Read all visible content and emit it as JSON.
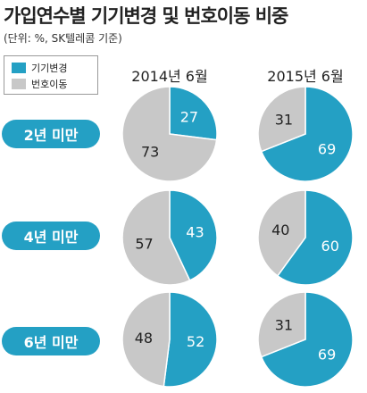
{
  "title": "가입연수별 기기변경 및 번호이동 비중",
  "subtitle": "(단위: %, SK텔레콤 기준)",
  "colors": {
    "device_change": "#24a0c4",
    "number_port": "#c8c8c8",
    "label_bg": "#24a0c4"
  },
  "chart_data": {
    "type": "pie",
    "title": "가입연수별 기기변경 및 번호이동 비중",
    "unit": "%",
    "legend": [
      "기기변경",
      "번호이동"
    ],
    "columns": [
      "2014년 6월",
      "2015년 6월"
    ],
    "rows": [
      "2년 미만",
      "4년 미만",
      "6년 미만"
    ],
    "pies": [
      {
        "row": "2년 미만",
        "column": "2014년 6월",
        "values": [
          27,
          73
        ]
      },
      {
        "row": "2년 미만",
        "column": "2015년 6월",
        "values": [
          69,
          31
        ]
      },
      {
        "row": "4년 미만",
        "column": "2014년 6월",
        "values": [
          43,
          57
        ]
      },
      {
        "row": "4년 미만",
        "column": "2015년 6월",
        "values": [
          60,
          40
        ]
      },
      {
        "row": "6년 미만",
        "column": "2014년 6월",
        "values": [
          52,
          48
        ]
      },
      {
        "row": "6년 미만",
        "column": "2015년 6월",
        "values": [
          69,
          31
        ]
      }
    ]
  }
}
